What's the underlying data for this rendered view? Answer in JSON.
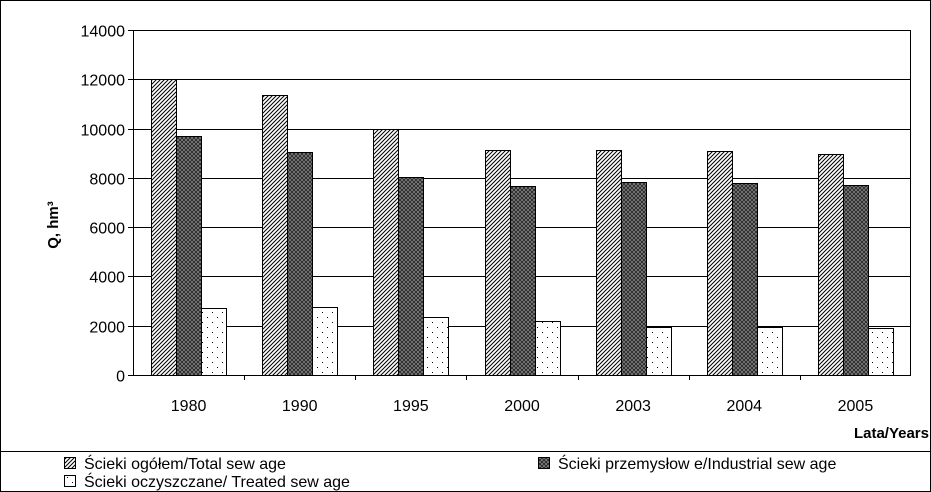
{
  "chart_data": {
    "type": "bar",
    "categories": [
      "1980",
      "1990",
      "1995",
      "2000",
      "2003",
      "2004",
      "2005"
    ],
    "series": [
      {
        "name": "Ścieki ogółem/Total sew age",
        "values": [
          12000,
          11350,
          9980,
          9150,
          9150,
          9100,
          8950
        ],
        "pattern": "diagonal",
        "color": "#ffffff"
      },
      {
        "name": "Ścieki przemysłow e/Industrial sew age",
        "values": [
          9700,
          9050,
          8050,
          7650,
          7850,
          7800,
          7700
        ],
        "pattern": "crosshatch",
        "color": "#7f7f7f"
      },
      {
        "name": "Ścieki oczyszczane/ Treated sew age",
        "values": [
          2700,
          2750,
          2350,
          2200,
          1950,
          1950,
          1900
        ],
        "pattern": "dots",
        "color": "#ffffff"
      }
    ],
    "ylabel": "Q, hm³",
    "xlabel": "Lata/Years",
    "ylim": [
      0,
      14000
    ],
    "yticks": [
      "0",
      "2000",
      "4000",
      "6000",
      "8000",
      "10000",
      "12000",
      "14000"
    ],
    "grid": true,
    "legend": "bottom"
  }
}
